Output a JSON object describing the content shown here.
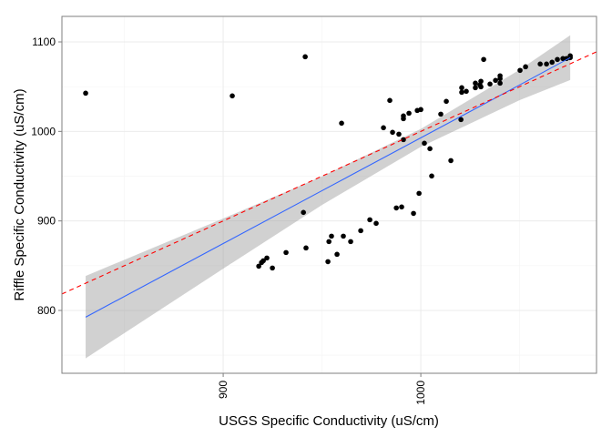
{
  "chart_data": {
    "type": "scatter",
    "xlabel": "USGS Specific Conductivity (uS/cm)",
    "ylabel": "Riffle Specific Conductivity (uS/cm)",
    "xlim": [
      818.4,
      1088.9
    ],
    "ylim": [
      729.8,
      1128.5
    ],
    "xticks": [
      900,
      1000
    ],
    "yticks": [
      800,
      900,
      1000,
      1100
    ],
    "minor_xticks": [
      850,
      950,
      1050
    ],
    "minor_yticks": [
      750,
      850,
      950,
      1050
    ],
    "grid": true,
    "series": [
      {
        "color": "#000000",
        "x": [
          830.4,
          904.6,
          941.5,
          940.6,
          941.9,
          918.0,
          919.4,
          920.3,
          922.1,
          924.9,
          931.8,
          953.0,
          953.5,
          954.8,
          957.6,
          960.8,
          964.5,
          969.6,
          974.2,
          977.4,
          987.6,
          990.3,
          996.3,
          999.1,
          959.9,
          981.1,
          984.3,
          985.7,
          988.9,
          991.2,
          991.2,
          994.0,
          991.2,
          998.2,
          1000.0,
          1001.8,
          1004.6,
          1005.5,
          1010.1,
          1012.9,
          1015.2,
          1020.3,
          1020.7,
          1020.7,
          1023.0,
          1027.6,
          1027.6,
          1029.9,
          1030.4,
          1030.4,
          1031.8,
          1035.0,
          1037.8,
          1040.1,
          1040.1,
          1040.1,
          1050.2,
          1053.0,
          1060.4,
          1063.6,
          1066.4,
          1069.1,
          1071.9,
          1073.7,
          1075.6,
          1075.6
        ],
        "values": [
          1042.7,
          1039.7,
          1083.4,
          909.5,
          869.8,
          849.4,
          853.5,
          855.5,
          858.6,
          847.4,
          864.7,
          854.5,
          876.9,
          883.0,
          862.7,
          883.0,
          876.9,
          889.1,
          901.3,
          897.3,
          914.5,
          915.6,
          908.4,
          930.8,
          1009.2,
          1004.1,
          1034.6,
          999.0,
          996.9,
          1014.2,
          1017.3,
          1020.3,
          990.8,
          1023.4,
          1024.4,
          986.8,
          980.7,
          950.2,
          1019.3,
          1033.6,
          967.4,
          1013.2,
          1048.8,
          1043.7,
          1044.8,
          1048.8,
          1053.9,
          1051.9,
          1056.0,
          1049.8,
          1080.4,
          1052.9,
          1057.0,
          1059.0,
          1062.1,
          1053.9,
          1068.2,
          1072.2,
          1075.3,
          1075.3,
          1077.3,
          1080.4,
          1081.4,
          1081.4,
          1082.4,
          1084.4
        ]
      }
    ],
    "fit": {
      "color": "#3366ff",
      "band_color": "#999999",
      "x": [
        830.4,
        900,
        950,
        1000,
        1050,
        1075.6
      ],
      "values": [
        792.5,
        874.7,
        933.8,
        992.8,
        1051.9,
        1082.4
      ],
      "lower": [
        746.5,
        846.7,
        917.8,
        982.8,
        1034.9,
        1057.4
      ],
      "upper": [
        838.5,
        902.7,
        949.8,
        1002.8,
        1068.9,
        1107.4
      ]
    },
    "reference": {
      "color": "#ff0000",
      "dashed": true,
      "x": [
        818.4,
        1088.9
      ],
      "values": [
        818.4,
        1088.9
      ]
    }
  }
}
